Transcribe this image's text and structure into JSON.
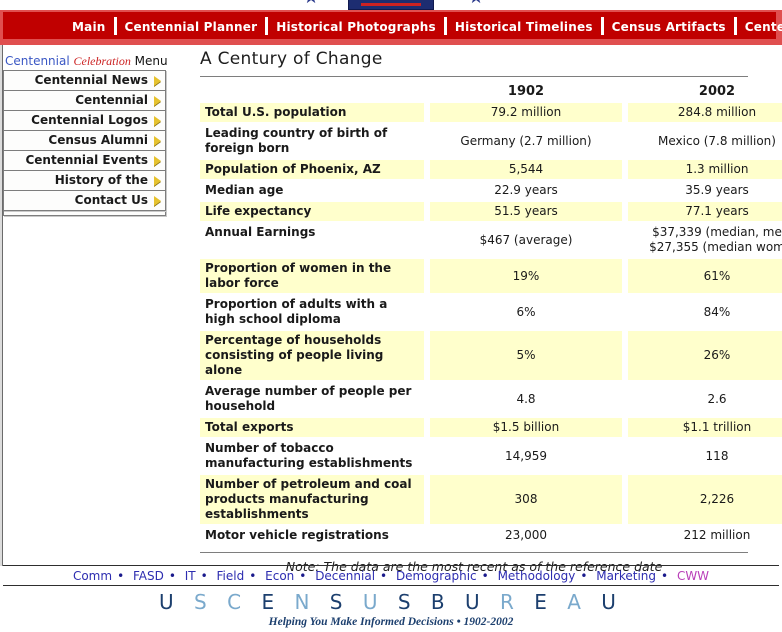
{
  "nav": {
    "items": [
      "Main",
      "Centennial Planner",
      "Historical Photographs",
      "Historical Timelines",
      "Census Artifacts",
      "Centennial Quilt"
    ]
  },
  "sidebar": {
    "title": {
      "word1": "Centennial",
      "word2": "Celebration",
      "word3": "Menu"
    },
    "items": [
      "Centennial News",
      "Centennial Multimedia",
      "Centennial Logos",
      "Census Alumni",
      "Centennial Events",
      "History of the Census",
      "Contact Us"
    ]
  },
  "main": {
    "title": "A Century of Change",
    "note": "Note: The data are the most recent as of the reference date"
  },
  "table": {
    "columns": [
      "1902",
      "2002"
    ],
    "rows": [
      {
        "label": "Total U.S. population",
        "y1902": "79.2 million",
        "y2002": "284.8 million"
      },
      {
        "label": "Leading country of birth of foreign born",
        "y1902": "Germany (2.7 million)",
        "y2002": "Mexico (7.8 million)"
      },
      {
        "label": "Population of Phoenix, AZ",
        "y1902": "5,544",
        "y2002": "1.3 million"
      },
      {
        "label": "Median age",
        "y1902": "22.9 years",
        "y2002": "35.9 years"
      },
      {
        "label": "Life expectancy",
        "y1902": "51.5 years",
        "y2002": "77.1 years"
      },
      {
        "label": "Annual Earnings",
        "y1902": "$467 (average)",
        "y2002": "$37,339 (median, me\n$27,355 (median wom"
      },
      {
        "label": "Proportion of women in the labor force",
        "y1902": "19%",
        "y2002": "61%"
      },
      {
        "label": "Proportion of adults with a high school diploma",
        "y1902": "6%",
        "y2002": "84%"
      },
      {
        "label": "Percentage of households consisting of people living alone",
        "y1902": "5%",
        "y2002": "26%"
      },
      {
        "label": "Average number of people per household",
        "y1902": "4.8",
        "y2002": "2.6"
      },
      {
        "label": "Total exports",
        "y1902": "$1.5 billion",
        "y2002": "$1.1 trillion"
      },
      {
        "label": "Number of tobacco manufacturing establishments",
        "y1902": "14,959",
        "y2002": "118"
      },
      {
        "label": "Number of petroleum and coal products manufacturing establishments",
        "y1902": "308",
        "y2002": "2,226"
      },
      {
        "label": "Motor vehicle registrations",
        "y1902": "23,000",
        "y2002": "212 million"
      }
    ]
  },
  "footer": {
    "separator": "•",
    "links": [
      {
        "label": "Comm",
        "tone": "link"
      },
      {
        "label": "FASD",
        "tone": "link"
      },
      {
        "label": "IT",
        "tone": "link"
      },
      {
        "label": "Field",
        "tone": "link"
      },
      {
        "label": "Econ",
        "tone": "link"
      },
      {
        "label": "Decennial",
        "tone": "link"
      },
      {
        "label": "Demographic",
        "tone": "link"
      },
      {
        "label": "Methodology",
        "tone": "link"
      },
      {
        "label": "Marketing",
        "tone": "link"
      },
      {
        "label": "CWW",
        "tone": "visited"
      }
    ],
    "logo_letters": [
      {
        "ch": "U",
        "tone": "dark"
      },
      {
        "ch": "S",
        "tone": "light"
      },
      {
        "ch": "C",
        "tone": "light"
      },
      {
        "ch": "E",
        "tone": "dark"
      },
      {
        "ch": "N",
        "tone": "light"
      },
      {
        "ch": "S",
        "tone": "dark"
      },
      {
        "ch": "U",
        "tone": "light"
      },
      {
        "ch": "S",
        "tone": "dark"
      },
      {
        "ch": "B",
        "tone": "dark"
      },
      {
        "ch": "U",
        "tone": "dark"
      },
      {
        "ch": "R",
        "tone": "light"
      },
      {
        "ch": "E",
        "tone": "dark"
      },
      {
        "ch": "A",
        "tone": "light"
      },
      {
        "ch": "U",
        "tone": "dark"
      }
    ],
    "tagline": "Helping You Make Informed Decisions • 1902-2002"
  },
  "colors": {
    "nav_red": "#c00000",
    "nav_frame_red": "#e04f4f",
    "row_yellow": "#ffffcc",
    "link_blue": "#2d2db0",
    "visited_magenta": "#b93fb9",
    "logo_dark": "#1c3f6e",
    "logo_light": "#7aa9cc"
  }
}
